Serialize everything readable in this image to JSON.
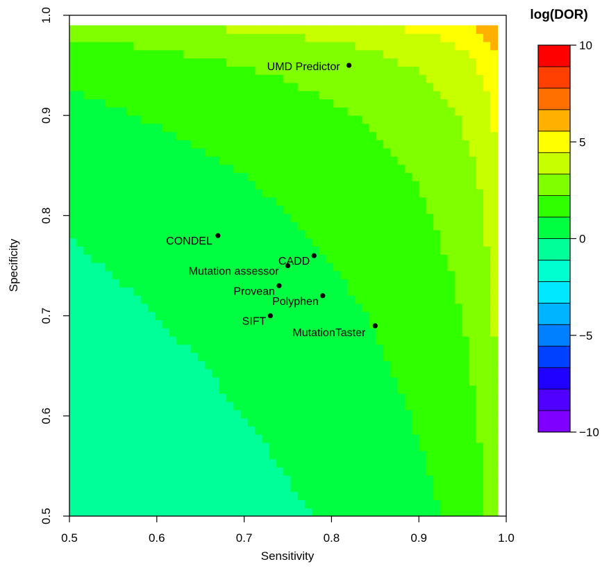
{
  "chart_data": {
    "type": "scatter",
    "title": "",
    "xlabel": "Sensitivity",
    "ylabel": "Specificity",
    "xlim": [
      0.5,
      1.0
    ],
    "ylim": [
      0.5,
      1.0
    ],
    "x_ticks": [
      0.5,
      0.6,
      0.7,
      0.8,
      0.9,
      1.0
    ],
    "x_tick_labels": [
      "0.5",
      "0.6",
      "0.7",
      "0.8",
      "0.9",
      "1.0"
    ],
    "y_ticks": [
      0.5,
      0.6,
      0.7,
      0.8,
      0.9,
      1.0
    ],
    "y_tick_labels": [
      "0.5",
      "0.6",
      "0.7",
      "0.8",
      "0.9",
      "1.0"
    ],
    "grid": false,
    "background": "filled contour of log(DOR) = log(sens/(1-sens)) + log(spec/(1-spec)), computed over 0.5-0.99",
    "points": [
      {
        "label": "UMD Predictor",
        "x": 0.82,
        "y": 0.95
      },
      {
        "label": "CONDEL",
        "x": 0.67,
        "y": 0.78
      },
      {
        "label": "CADD",
        "x": 0.78,
        "y": 0.76
      },
      {
        "label": "Mutation assessor",
        "x": 0.75,
        "y": 0.75
      },
      {
        "label": "Provean",
        "x": 0.74,
        "y": 0.73
      },
      {
        "label": "Polyphen",
        "x": 0.79,
        "y": 0.72
      },
      {
        "label": "SIFT",
        "x": 0.73,
        "y": 0.7
      },
      {
        "label": "MutationTaster",
        "x": 0.85,
        "y": 0.69
      }
    ],
    "colorbar": {
      "title": "log(DOR)",
      "range": [
        -10,
        10
      ],
      "step": 1.25,
      "tick_values": [
        10,
        5,
        0,
        -5,
        -10
      ],
      "tick_labels": [
        "10",
        "5",
        "0",
        "−5",
        "−10"
      ],
      "colors": [
        "#8000ff",
        "#5000ff",
        "#2000ff",
        "#0040ff",
        "#0080ff",
        "#00b4ff",
        "#00e8ff",
        "#00ffd0",
        "#00ff99",
        "#00ff40",
        "#30ff00",
        "#80ff00",
        "#c8ff00",
        "#ffff00",
        "#ffb000",
        "#ff7000",
        "#ff4000",
        "#ff0000"
      ]
    }
  }
}
